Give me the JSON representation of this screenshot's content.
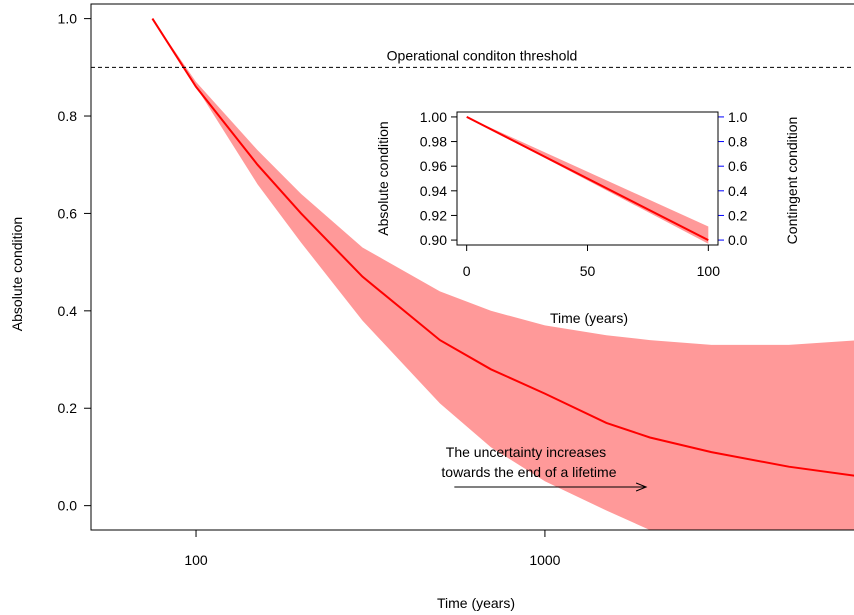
{
  "chart_data": [
    {
      "type": "line",
      "xlabel": "Time (years)",
      "ylabel": "Absolute condition",
      "x_scale": "log",
      "xlim": [
        50,
        8000
      ],
      "ylim": [
        -0.05,
        1.03
      ],
      "x_ticks": [
        100,
        1000
      ],
      "x_tick_labels": [
        "100",
        "1000"
      ],
      "y_ticks": [
        0.0,
        0.2,
        0.4,
        0.6,
        0.8,
        1.0
      ],
      "y_tick_labels": [
        "0.0",
        "0.2",
        "0.4",
        "0.6",
        "0.8",
        "1.0"
      ],
      "grid": false,
      "colors": {
        "line": "#ff0000",
        "band": "#ff9999",
        "threshold": "#000000"
      },
      "series": [
        {
          "kind": "line",
          "x": [
            75,
            100,
            150,
            200,
            300,
            500,
            700,
            1000,
            1500,
            2000,
            3000,
            5000,
            8000
          ],
          "y": [
            1.0,
            0.86,
            0.7,
            0.6,
            0.47,
            0.34,
            0.28,
            0.23,
            0.17,
            0.14,
            0.11,
            0.08,
            0.06
          ]
        },
        {
          "kind": "band",
          "x": [
            75,
            100,
            150,
            200,
            300,
            500,
            700,
            1000,
            1500,
            2000,
            3000,
            5000,
            8000
          ],
          "lower": [
            1.0,
            0.86,
            0.66,
            0.54,
            0.38,
            0.21,
            0.12,
            0.05,
            -0.01,
            -0.05,
            -0.05,
            -0.05,
            -0.05
          ],
          "upper": [
            1.0,
            0.87,
            0.73,
            0.64,
            0.53,
            0.44,
            0.4,
            0.37,
            0.35,
            0.34,
            0.33,
            0.33,
            0.34
          ]
        }
      ],
      "annotations": [
        {
          "text": "Operational conditon threshold",
          "y": 0.9
        },
        {
          "text": "The uncertainty increases",
          "x": 900,
          "y": 0.12
        },
        {
          "text": "towards the end of a lifetime",
          "x": 900,
          "y": 0.085
        }
      ],
      "arrow": {
        "x_from": 550,
        "x_to": 1950,
        "y": 0.05
      }
    },
    {
      "type": "line",
      "xlabel": "Time (years)",
      "ylabel": "Absolute condition",
      "y2label": "Contingent condition",
      "xlim": [
        -4,
        104
      ],
      "ylim": [
        0.896,
        1.004
      ],
      "y2lim": [
        -0.04,
        1.04
      ],
      "x_ticks": [
        0,
        50,
        100
      ],
      "x_tick_labels": [
        "0",
        "50",
        "100"
      ],
      "y_ticks": [
        0.9,
        0.92,
        0.94,
        0.96,
        0.98,
        1.0
      ],
      "y_tick_labels": [
        "0.90",
        "0.92",
        "0.94",
        "0.96",
        "0.98",
        "1.00"
      ],
      "y2_ticks": [
        0.0,
        0.2,
        0.4,
        0.6,
        0.8,
        1.0
      ],
      "y2_tick_labels": [
        "0.0",
        "0.2",
        "0.4",
        "0.6",
        "0.8",
        "1.0"
      ],
      "y2_color": "#0000ff",
      "series": [
        {
          "kind": "line",
          "x": [
            0,
            100
          ],
          "y": [
            1.0,
            0.9
          ]
        },
        {
          "kind": "band",
          "x": [
            0,
            100
          ],
          "lower": [
            1.0,
            0.897
          ],
          "upper": [
            1.0,
            0.911
          ]
        }
      ]
    }
  ]
}
